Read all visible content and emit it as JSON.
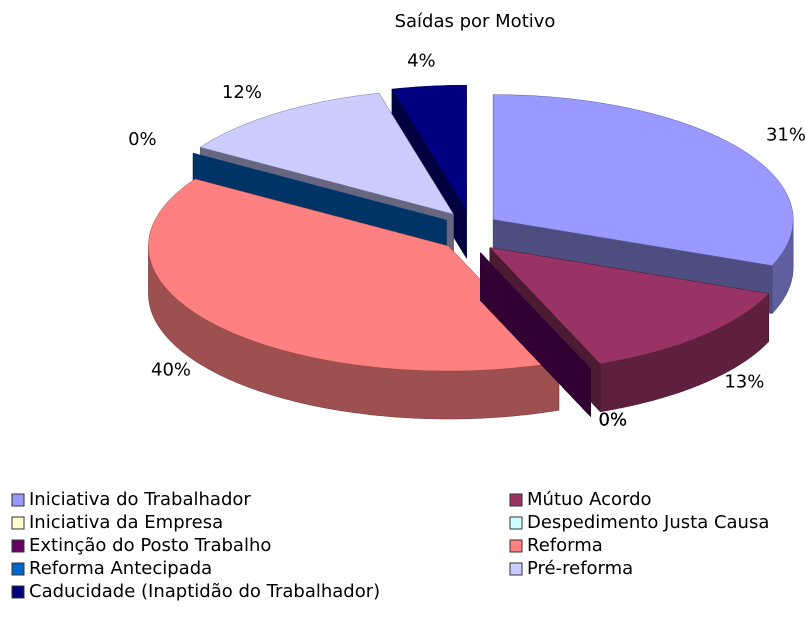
{
  "chart_data": {
    "type": "pie",
    "title": "Saídas por Motivo",
    "categories": [
      "Iniciativa do Trabalhador",
      "Mútuo Acordo",
      "Iniciativa da Empresa",
      "Despedimento Justa Causa",
      "Extinção do Posto Trabalho",
      "Reforma",
      "Reforma Antecipada",
      "Pré-reforma",
      "Caducidade (Inaptidão do Trabalhador)"
    ],
    "values": [
      31,
      13,
      0,
      0,
      0,
      40,
      0,
      12,
      4
    ],
    "value_labels": [
      "31%",
      "13%",
      "0%",
      "0%",
      "0%",
      "40%",
      "0%",
      "12%",
      "4%"
    ],
    "colors": [
      "#9999ff",
      "#993366",
      "#ffffcc",
      "#ccffff",
      "#660066",
      "#ff8080",
      "#0066cc",
      "#ccccff",
      "#000080"
    ]
  }
}
